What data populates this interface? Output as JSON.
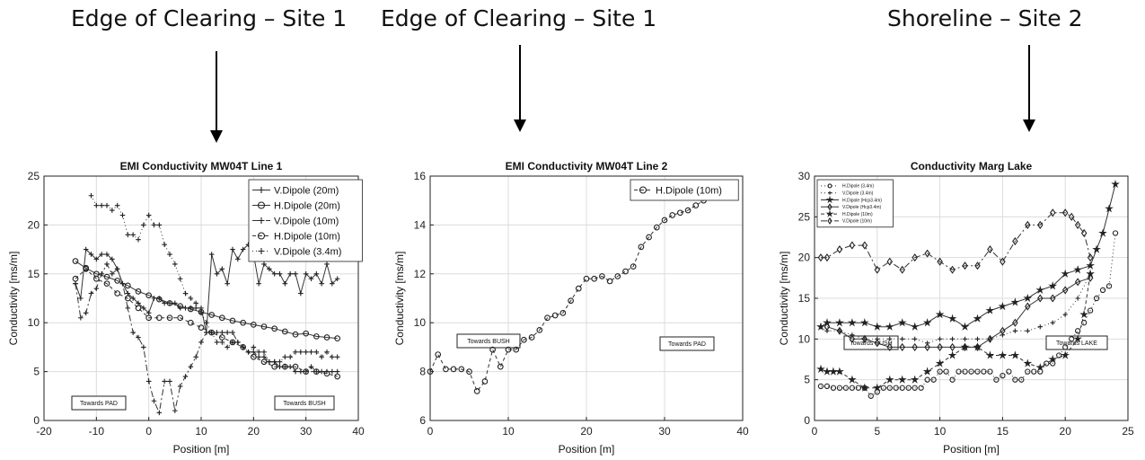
{
  "headers": [
    "Edge of Clearing – Site 1",
    "Edge of Clearing – Site 1",
    "Shoreline – Site 2"
  ],
  "chart_data": [
    {
      "type": "line",
      "title": "EMI Conductivity MW04T Line 1",
      "xlabel": "Position [m]",
      "ylabel": "Conductivity [ms/m]",
      "xlim": [
        -20,
        40
      ],
      "ylim": [
        0,
        25
      ],
      "xticks": [
        -20,
        -10,
        0,
        10,
        20,
        30,
        40
      ],
      "yticks": [
        0,
        5,
        10,
        15,
        20,
        25
      ],
      "grid": true,
      "legend": "top-right",
      "annotations": [
        "Towards PAD",
        "Towards BUSH"
      ],
      "series": [
        {
          "name": "V.Dipole (20m)",
          "marker": "plus",
          "dash": "",
          "x": [
            -14,
            -13,
            -12,
            -11,
            -10,
            -9,
            -8,
            -7,
            -6,
            -5,
            -4,
            -3,
            -2,
            -1,
            0,
            1,
            2,
            3,
            4,
            5,
            6,
            7,
            8,
            9,
            10,
            11,
            12,
            13,
            14,
            15,
            16,
            17,
            18,
            19,
            20,
            21,
            22,
            23,
            24,
            25,
            26,
            27,
            28,
            29,
            30,
            31,
            32,
            33,
            34,
            35,
            36
          ],
          "y": [
            14,
            12.5,
            17.5,
            17,
            16.5,
            17,
            17,
            16.5,
            15.5,
            14,
            13,
            12.5,
            12,
            11.5,
            11,
            12.5,
            12.5,
            12,
            12,
            12,
            11.5,
            11.5,
            11.5,
            11.5,
            11.5,
            9,
            17,
            15,
            15.5,
            14,
            17.5,
            16.5,
            17.5,
            18,
            17,
            14,
            16,
            15.5,
            15,
            15,
            14,
            15,
            15,
            13,
            15,
            14.5,
            15,
            14,
            16,
            14,
            14.5
          ]
        },
        {
          "name": "H.Dipole (20m)",
          "marker": "circle",
          "dash": "",
          "x": [
            -14,
            -12,
            -10,
            -8,
            -6,
            -4,
            -2,
            0,
            2,
            4,
            6,
            8,
            10,
            12,
            14,
            16,
            18,
            20,
            22,
            24,
            26,
            28,
            30,
            32,
            34,
            36
          ],
          "y": [
            16.3,
            15.6,
            15,
            14.7,
            14.3,
            13.8,
            13.2,
            12.8,
            12.4,
            12,
            11.7,
            11.4,
            11.1,
            10.8,
            10.5,
            10.2,
            10,
            9.8,
            9.6,
            9.4,
            9.1,
            8.8,
            8.9,
            8.6,
            8.5,
            8.4
          ]
        },
        {
          "name": "V.Dipole (10m)",
          "marker": "plus",
          "dash": "7,3,2,3",
          "x": [
            -14,
            -13,
            -12,
            -11,
            -10,
            -9,
            -8,
            -7,
            -6,
            -5,
            -4,
            -3,
            -2,
            -1,
            0,
            1,
            2,
            3,
            4,
            5,
            6,
            7,
            8,
            9,
            10,
            11,
            12,
            13,
            14,
            15,
            16,
            17,
            18,
            19,
            20,
            21,
            22,
            23,
            24,
            25,
            26,
            27,
            28,
            29,
            30,
            31,
            32,
            33,
            34,
            35,
            36
          ],
          "y": [
            14,
            10.5,
            11,
            13,
            13.5,
            15,
            16,
            15,
            15.5,
            14,
            11.5,
            9,
            8.5,
            7.5,
            4,
            2,
            0.8,
            4,
            4,
            1,
            3.5,
            4.5,
            5.5,
            6.5,
            8,
            9,
            9,
            9,
            9,
            9,
            9,
            8,
            7.5,
            7,
            7,
            6.5,
            6.5,
            6,
            6,
            5.5,
            5.5,
            5.5,
            5,
            5,
            5,
            5.5,
            5,
            5,
            5,
            5,
            5
          ]
        },
        {
          "name": "H.Dipole (10m)",
          "marker": "circle",
          "dash": "4,3",
          "x": [
            -14,
            -12,
            -10,
            -8,
            -6,
            -4,
            -2,
            0,
            2,
            4,
            6,
            8,
            10,
            12,
            14,
            16,
            18,
            20,
            22,
            24,
            26,
            28,
            30,
            32,
            34,
            36
          ],
          "y": [
            14.5,
            15.5,
            14.5,
            14,
            13,
            12.5,
            11.5,
            10.5,
            10.5,
            10.5,
            10.5,
            10,
            9.5,
            9,
            8.5,
            8,
            7.5,
            6.5,
            6,
            5.5,
            5.5,
            5.5,
            5,
            5,
            4.8,
            4.5
          ]
        },
        {
          "name": "V.Dipole (3.4m)",
          "marker": "plus",
          "dash": "1,3",
          "x": [
            -11,
            -10,
            -9,
            -8,
            -7,
            -6,
            -5,
            -4,
            -3,
            -2,
            -1,
            0,
            1,
            2,
            3,
            4,
            5,
            6,
            7,
            8,
            9,
            10,
            11,
            12,
            13,
            14,
            15,
            16,
            17,
            18,
            19,
            20,
            21,
            22,
            23,
            24,
            25,
            26,
            27,
            28,
            29,
            30,
            31,
            32,
            33,
            34,
            35,
            36
          ],
          "y": [
            23,
            22,
            22,
            22,
            21.5,
            22,
            21,
            19,
            19,
            18.5,
            20,
            21,
            20,
            20,
            18,
            17,
            16,
            14.5,
            13,
            12.5,
            12,
            11,
            10,
            9,
            8,
            8,
            7.5,
            8,
            8,
            7.5,
            7,
            7.5,
            7,
            7,
            6,
            6,
            6,
            6.5,
            6.5,
            7,
            7,
            7,
            7,
            7,
            6.5,
            7,
            6.5,
            6.5
          ]
        }
      ]
    },
    {
      "type": "line",
      "title": "EMI Conductivity MW04T Line 2",
      "xlabel": "Position [m]",
      "ylabel": "Conductivity [ms/m]",
      "xlim": [
        0,
        40
      ],
      "ylim": [
        6,
        16
      ],
      "xticks": [
        0,
        10,
        20,
        30,
        40
      ],
      "yticks": [
        6,
        8,
        10,
        12,
        14,
        16
      ],
      "grid": true,
      "legend": "top-right",
      "annotations": [
        "Towards BUSH",
        "Towards PAD"
      ],
      "series": [
        {
          "name": "H.Dipole (10m)",
          "marker": "circle",
          "dash": "4,3",
          "x": [
            0,
            1,
            2,
            3,
            4,
            5,
            6,
            7,
            8,
            9,
            10,
            11,
            12,
            13,
            14,
            15,
            16,
            17,
            18,
            19,
            20,
            21,
            22,
            23,
            24,
            25,
            26,
            27,
            28,
            29,
            30,
            31,
            32,
            33,
            34,
            35
          ],
          "y": [
            8,
            8.7,
            8.1,
            8.1,
            8.1,
            8,
            7.2,
            7.6,
            8.9,
            8.2,
            8.9,
            8.9,
            9.3,
            9.4,
            9.7,
            10.2,
            10.3,
            10.4,
            10.9,
            11.4,
            11.8,
            11.8,
            11.9,
            11.7,
            11.9,
            12.1,
            12.3,
            13.1,
            13.5,
            13.9,
            14.2,
            14.4,
            14.5,
            14.6,
            14.8,
            15.0
          ]
        }
      ]
    },
    {
      "type": "line",
      "title": "Conductivity Marg Lake",
      "xlabel": "Position [m]",
      "ylabel": "Conductivity [ms/m]",
      "xlim": [
        0,
        25
      ],
      "ylim": [
        0,
        30
      ],
      "xticks": [
        0,
        5,
        10,
        15,
        20,
        25
      ],
      "yticks": [
        0,
        5,
        10,
        15,
        20,
        25,
        30
      ],
      "grid": true,
      "legend": "top-left",
      "annotations": [
        "Towards BUSH",
        "Towards LAKE"
      ],
      "series": [
        {
          "name": "H.Dipole (3.4m)",
          "marker": "circle",
          "dash": "1,3",
          "x": [
            0.5,
            1,
            1.5,
            2,
            2.5,
            3,
            3.5,
            4,
            4.5,
            5,
            5.5,
            6,
            6.5,
            7,
            7.5,
            8,
            8.5,
            9,
            9.5,
            10,
            10.5,
            11,
            11.5,
            12,
            12.5,
            13,
            13.5,
            14,
            14.5,
            15,
            15.5,
            16,
            16.5,
            17,
            17.5,
            18,
            18.5,
            19,
            19.5,
            20,
            20.5,
            21,
            21.5,
            22,
            22.5,
            23,
            23.5,
            24
          ],
          "y": [
            4.2,
            4.2,
            4,
            4,
            4,
            4,
            4,
            4,
            3,
            3.5,
            4,
            4,
            4,
            4,
            4,
            4,
            4,
            5,
            5,
            6,
            6,
            5,
            6,
            6,
            6,
            6,
            6,
            6,
            5,
            5.5,
            6,
            5,
            5,
            6,
            6,
            6,
            7,
            7,
            8,
            9,
            10,
            11,
            12,
            13.5,
            15,
            16,
            16.5,
            23
          ]
        },
        {
          "name": "V.Dipole (3.4m)",
          "marker": "plus",
          "dash": "1,3",
          "x": [
            0.5,
            1,
            2,
            3,
            4,
            5,
            6,
            7,
            8,
            9,
            10,
            11,
            12,
            13,
            14,
            15,
            16,
            17,
            18,
            19,
            20,
            21,
            22
          ],
          "y": [
            11.5,
            11,
            11,
            10.5,
            10,
            10,
            10,
            10,
            10,
            9.5,
            10,
            10,
            10,
            10,
            10,
            10.5,
            11,
            11,
            11.5,
            12,
            13,
            15,
            18
          ]
        },
        {
          "name": "H.Dipole (Hcp3.4m)",
          "marker": "star",
          "dash": "",
          "x": [
            0.5,
            1,
            2,
            3,
            4,
            5,
            6,
            7,
            8,
            9,
            10,
            11,
            12,
            13,
            14,
            15,
            16,
            17,
            18,
            19,
            20,
            21,
            22,
            22.5,
            23,
            23.5,
            24
          ],
          "y": [
            11.5,
            12,
            12,
            12,
            12,
            11.5,
            11.5,
            12,
            11.5,
            12,
            13,
            12.5,
            11.5,
            12.5,
            13.5,
            14,
            14.5,
            15,
            16,
            16.5,
            18,
            18.5,
            19,
            21,
            23,
            26,
            29
          ]
        },
        {
          "name": "V.Dipole (Hcp3.4m)",
          "marker": "diamond",
          "dash": "",
          "x": [
            1,
            2,
            3,
            4,
            5,
            6,
            7,
            8,
            9,
            10,
            11,
            12,
            13,
            14,
            15,
            16,
            17,
            18,
            19,
            20,
            21,
            22
          ],
          "y": [
            11.5,
            11,
            10,
            10,
            9.5,
            9,
            9,
            9,
            9,
            9,
            9,
            9,
            9,
            10,
            11,
            12,
            14,
            15,
            15,
            16,
            17,
            17.5
          ]
        },
        {
          "name": "H.Dipole (10m)",
          "marker": "star",
          "dash": "4,3",
          "x": [
            0.5,
            1,
            1.5,
            2,
            3,
            4,
            5,
            6,
            7,
            8,
            9,
            10,
            11,
            12,
            13,
            14,
            15,
            16,
            17,
            18,
            19,
            20,
            21,
            21.5,
            22
          ],
          "y": [
            6.3,
            6,
            6,
            6,
            5,
            4,
            4,
            5,
            5,
            5,
            6,
            7,
            8,
            9,
            9,
            8,
            8,
            8,
            7,
            6.5,
            7.5,
            8,
            10,
            13,
            18
          ]
        },
        {
          "name": "V.Dipole (10m)",
          "marker": "diamond",
          "dash": "7,3,2,3",
          "x": [
            0.5,
            1,
            2,
            3,
            4,
            5,
            6,
            7,
            8,
            9,
            10,
            11,
            12,
            13,
            14,
            15,
            16,
            17,
            18,
            19,
            20,
            20.5,
            21,
            21.5,
            22
          ],
          "y": [
            20,
            20,
            21,
            21.5,
            21.5,
            18.5,
            19.5,
            18.5,
            20,
            20.5,
            19.5,
            18.5,
            19,
            19,
            21,
            19.5,
            22,
            24,
            24,
            25.5,
            25.5,
            25,
            24,
            23,
            20
          ]
        }
      ]
    }
  ]
}
